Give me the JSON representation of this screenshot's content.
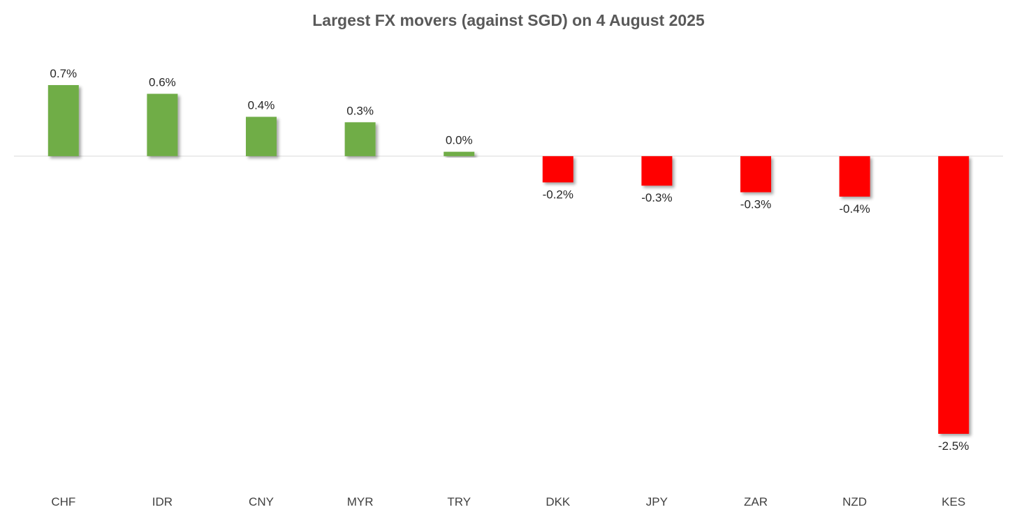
{
  "chart_data": {
    "type": "bar",
    "title": "Largest FX movers (against SGD) on 4 August 2025",
    "xlabel": "",
    "ylabel": "",
    "categories": [
      "CHF",
      "IDR",
      "CNY",
      "MYR",
      "TRY",
      "DKK",
      "JPY",
      "ZAR",
      "NZD",
      "KES"
    ],
    "values": [
      0.65,
      0.57,
      0.36,
      0.31,
      0.04,
      -0.24,
      -0.27,
      -0.33,
      -0.37,
      -2.54
    ],
    "value_labels": [
      "0.7%",
      "0.6%",
      "0.4%",
      "0.3%",
      "0.0%",
      "-0.2%",
      "-0.3%",
      "-0.3%",
      "-0.4%",
      "-2.5%"
    ],
    "ylim": [
      -2.54,
      0.65
    ],
    "grid": false,
    "legend": "none",
    "colors": {
      "positive": "#70AD47",
      "negative": "#FF0000",
      "zero_line": "#D9D9D9",
      "title": "#595959",
      "label": "#262626",
      "category": "#404040"
    }
  }
}
